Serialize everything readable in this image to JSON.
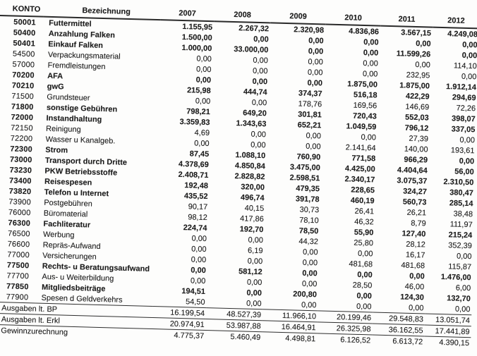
{
  "table": {
    "headers": {
      "konto": "KONTO",
      "bezeichnung": "Bezeichnung",
      "years": [
        "2007",
        "2008",
        "2009",
        "2010",
        "2011",
        "2012"
      ]
    },
    "rows": [
      {
        "konto": "50001",
        "label": "Futtermittel",
        "bold": true,
        "values": [
          "1.155,95",
          "2.267,32",
          "2.320,98",
          "4.836,86",
          "3.567,15",
          "4.249,08"
        ]
      },
      {
        "konto": "50400",
        "label": "Anzahlung Falken",
        "bold": true,
        "values": [
          "1.500,00",
          "0,00",
          "0,00",
          "0,00",
          "0,00",
          "0,00"
        ]
      },
      {
        "konto": "50401",
        "label": "Einkauf Falken",
        "bold": true,
        "values": [
          "1.000,00",
          "33.000,00",
          "0,00",
          "0,00",
          "11.599,26",
          "0,00"
        ]
      },
      {
        "konto": "54500",
        "label": "Verpackungsmaterial",
        "bold": false,
        "values": [
          "0,00",
          "0,00",
          "0,00",
          "0,00",
          "0,00",
          "114,10"
        ]
      },
      {
        "konto": "57000",
        "label": "Fremdleistungen",
        "bold": false,
        "values": [
          "0,00",
          "0,00",
          "0,00",
          "0,00",
          "232,95",
          "0,00"
        ]
      },
      {
        "konto": "70200",
        "label": "AFA",
        "bold": true,
        "values": [
          "0,00",
          "0,00",
          "0,00",
          "1.875,00",
          "1.875,00",
          "1.912,14"
        ]
      },
      {
        "konto": "70210",
        "label": "gwG",
        "bold": true,
        "values": [
          "215,98",
          "444,74",
          "374,37",
          "516,18",
          "422,29",
          "294,69"
        ]
      },
      {
        "konto": "71500",
        "label": "Grundsteuer",
        "bold": false,
        "values": [
          "0,00",
          "0,00",
          "178,76",
          "169,56",
          "146,69",
          "72,26"
        ]
      },
      {
        "konto": "71800",
        "label": "sonstige Gebühren",
        "bold": true,
        "values": [
          "798,21",
          "649,20",
          "301,81",
          "720,43",
          "552,03",
          "398,07"
        ]
      },
      {
        "konto": "72000",
        "label": "Instandhaltung",
        "bold": true,
        "values": [
          "3.359,83",
          "1.343,63",
          "652,21",
          "1.049,59",
          "796,12",
          "337,05"
        ]
      },
      {
        "konto": "72150",
        "label": "Reinigung",
        "bold": false,
        "values": [
          "4,69",
          "0,00",
          "0,00",
          "0,00",
          "27,39",
          "0,00"
        ]
      },
      {
        "konto": "72200",
        "label": "Wasser u Kanalgeb.",
        "bold": false,
        "values": [
          "0,00",
          "0,00",
          "0,00",
          "2.141,64",
          "140,00",
          "193,61"
        ]
      },
      {
        "konto": "72300",
        "label": "Strom",
        "bold": true,
        "values": [
          "87,45",
          "1.088,10",
          "760,90",
          "771,58",
          "966,29",
          "0,00"
        ]
      },
      {
        "konto": "73000",
        "label": "Transport durch Dritte",
        "bold": true,
        "values": [
          "4.378,69",
          "4.850,84",
          "3.475,00",
          "4.425,00",
          "4.404,64",
          "56,00"
        ]
      },
      {
        "konto": "73230",
        "label": "PKW Betriebsstoffe",
        "bold": true,
        "values": [
          "2.408,71",
          "2.828,82",
          "2.598,51",
          "2.340,17",
          "3.075,37",
          "2.310,50"
        ]
      },
      {
        "konto": "73400",
        "label": "Reisespesen",
        "bold": true,
        "values": [
          "192,48",
          "320,00",
          "479,35",
          "228,65",
          "324,27",
          "380,47"
        ]
      },
      {
        "konto": "73820",
        "label": "Telefon u Internet",
        "bold": true,
        "values": [
          "435,52",
          "496,74",
          "391,78",
          "460,19",
          "560,73",
          "285,14"
        ]
      },
      {
        "konto": "73900",
        "label": "Postgebühren",
        "bold": false,
        "values": [
          "90,17",
          "40,15",
          "30,73",
          "26,41",
          "26,21",
          "38,48"
        ]
      },
      {
        "konto": "76000",
        "label": "Büromaterial",
        "bold": false,
        "values": [
          "98,12",
          "417,86",
          "78,10",
          "46,32",
          "8,79",
          "111,97"
        ]
      },
      {
        "konto": "76300",
        "label": "Fachliteratur",
        "bold": true,
        "values": [
          "224,74",
          "192,70",
          "78,50",
          "55,90",
          "127,40",
          "215,24"
        ]
      },
      {
        "konto": "76500",
        "label": "Werbung",
        "bold": false,
        "values": [
          "0,00",
          "0,00",
          "44,32",
          "25,80",
          "28,12",
          "352,39"
        ]
      },
      {
        "konto": "76600",
        "label": "Repräs-Aufwand",
        "bold": false,
        "values": [
          "0,00",
          "6,19",
          "0,00",
          "0,00",
          "16,17",
          "0,00"
        ]
      },
      {
        "konto": "77000",
        "label": "Versicherungen",
        "bold": false,
        "values": [
          "0,00",
          "0,00",
          "0,00",
          "481,68",
          "481,68",
          "115,87"
        ]
      },
      {
        "konto": "77500",
        "label": "Rechts- u Beratungsaufwand",
        "bold": true,
        "values": [
          "0,00",
          "581,12",
          "0,00",
          "0,00",
          "0,00",
          "1.476,00"
        ]
      },
      {
        "konto": "77700",
        "label": "Aus- u Weiterbildung",
        "bold": false,
        "values": [
          "0,00",
          "0,00",
          "0,00",
          "28,50",
          "46,00",
          "6,00"
        ]
      },
      {
        "konto": "77850",
        "label": "Mitgliedsbeiträge",
        "bold": true,
        "values": [
          "194,51",
          "0,00",
          "200,80",
          "0,00",
          "124,30",
          "132,70"
        ]
      },
      {
        "konto": "77900",
        "label": "Spesen d Geldverkehrs",
        "bold": false,
        "values": [
          "54,50",
          "0,00",
          "0,00",
          "0,00",
          "0,00",
          "0,00"
        ]
      }
    ],
    "summary": [
      {
        "label": "Ausgaben lt. BP",
        "values": [
          "16.199,54",
          "48.527,39",
          "11.966,10",
          "20.199,46",
          "29.548,83",
          "13.051,74"
        ]
      },
      {
        "label": "Ausgaben lt. Erkl",
        "values": [
          "20.974,91",
          "53.987,88",
          "16.464,91",
          "26.325,98",
          "36.162,55",
          "17.441,89"
        ]
      },
      {
        "label": "Gewinnzurechnung",
        "values": [
          "4.775,37",
          "5.460,49",
          "4.498,81",
          "6.126,52",
          "6.613,72",
          "4.390,15"
        ]
      }
    ]
  }
}
